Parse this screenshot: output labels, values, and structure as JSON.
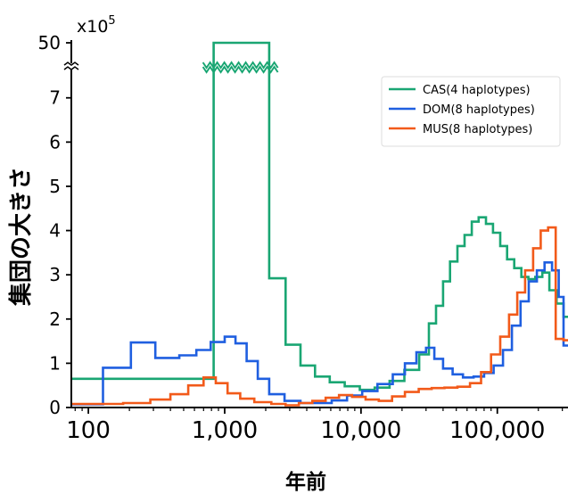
{
  "chart_data": {
    "type": "line",
    "xlabel": "年前",
    "ylabel": "集団の大きさ",
    "x_scale": "log",
    "xlim": [
      75,
      330000
    ],
    "ylim_lower": [
      0,
      7.7
    ],
    "y_break": {
      "upper_tick": 50
    },
    "y_multiplier": {
      "base": "x10",
      "exponent": "5"
    },
    "x_ticks": [
      {
        "value": 100,
        "label": "100"
      },
      {
        "value": 1000,
        "label": "1,000"
      },
      {
        "value": 10000,
        "label": "10,000"
      },
      {
        "value": 100000,
        "label": "100,000"
      }
    ],
    "y_ticks": [
      {
        "value": 0,
        "label": "0"
      },
      {
        "value": 1,
        "label": "1"
      },
      {
        "value": 2,
        "label": "2"
      },
      {
        "value": 3,
        "label": "3"
      },
      {
        "value": 4,
        "label": "4"
      },
      {
        "value": 5,
        "label": "5"
      },
      {
        "value": 6,
        "label": "6"
      },
      {
        "value": 7,
        "label": "7"
      },
      {
        "value": 50,
        "label": "50"
      }
    ],
    "legend_position": "top-right",
    "series": [
      {
        "name": "CAS(4 haplotypes)",
        "color": "#1aa673",
        "step_edges": [
          75,
          830,
          2120,
          2800,
          3600,
          4600,
          5900,
          7600,
          9800,
          12600,
          16200,
          20800,
          26700,
          31500,
          35500,
          40000,
          45000,
          51000,
          57500,
          65000,
          73000,
          82500,
          93000,
          105000,
          118000,
          133000,
          150000,
          169000,
          190000,
          214000,
          241000,
          272000,
          306000,
          330000
        ],
        "step_values": [
          0.65,
          50,
          2.92,
          1.42,
          0.95,
          0.7,
          0.57,
          0.48,
          0.4,
          0.45,
          0.6,
          0.85,
          1.2,
          1.9,
          2.3,
          2.85,
          3.3,
          3.65,
          3.9,
          4.2,
          4.3,
          4.15,
          3.95,
          3.65,
          3.35,
          3.15,
          2.95,
          2.9,
          2.95,
          3.05,
          2.65,
          2.35,
          2.05
        ]
      },
      {
        "name": "DOM(8 haplotypes)",
        "color": "#1f5fe0",
        "step_edges": [
          75,
          128,
          205,
          310,
          465,
          620,
          790,
          1000,
          1200,
          1450,
          1750,
          2120,
          2750,
          3600,
          4700,
          6100,
          7900,
          10200,
          13200,
          17100,
          21000,
          25500,
          30000,
          34500,
          40000,
          47000,
          56000,
          67000,
          80000,
          94000,
          110000,
          128000,
          148000,
          170000,
          195000,
          222000,
          252000,
          282000,
          306000,
          330000
        ],
        "step_values": [
          0.07,
          0.9,
          1.47,
          1.12,
          1.18,
          1.3,
          1.48,
          1.6,
          1.45,
          1.05,
          0.65,
          0.3,
          0.15,
          0.1,
          0.1,
          0.16,
          0.27,
          0.37,
          0.53,
          0.75,
          1.0,
          1.25,
          1.35,
          1.1,
          0.88,
          0.75,
          0.68,
          0.7,
          0.78,
          0.95,
          1.3,
          1.85,
          2.4,
          2.85,
          3.1,
          3.28,
          3.1,
          2.5,
          1.4
        ]
      },
      {
        "name": "MUS(8 haplotypes)",
        "color": "#f25a1a",
        "step_edges": [
          75,
          180,
          285,
          400,
          540,
          700,
          860,
          1050,
          1300,
          1650,
          2200,
          2800,
          3500,
          4400,
          5500,
          6900,
          8600,
          10800,
          13500,
          16900,
          21000,
          26500,
          33000,
          41000,
          51000,
          63000,
          76000,
          90000,
          105000,
          122000,
          140000,
          160000,
          183000,
          208000,
          236000,
          268000,
          306000,
          330000
        ],
        "step_values": [
          0.08,
          0.1,
          0.18,
          0.3,
          0.5,
          0.68,
          0.55,
          0.32,
          0.2,
          0.12,
          0.08,
          0.05,
          0.1,
          0.15,
          0.22,
          0.28,
          0.24,
          0.18,
          0.15,
          0.25,
          0.35,
          0.42,
          0.44,
          0.45,
          0.47,
          0.55,
          0.8,
          1.2,
          1.6,
          2.1,
          2.6,
          3.1,
          3.6,
          4.0,
          4.07,
          1.55,
          1.52
        ]
      }
    ]
  }
}
